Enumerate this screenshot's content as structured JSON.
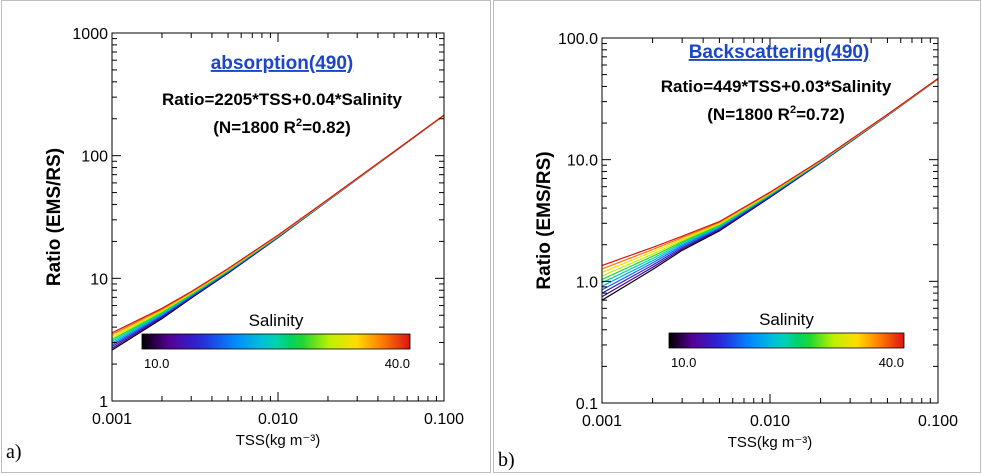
{
  "colors": {
    "title_link": "#1c46c8",
    "axis": "#000000"
  },
  "panels": [
    {
      "letter": "a)",
      "title": "absorption(490)",
      "equation": "Ratio=2205*TSS+0.04*Salinity",
      "stats_prefix": "(N=1800 R",
      "stats_sup": "2",
      "stats_suffix": "=0.82)"
    },
    {
      "letter": "b)",
      "title": "Backscattering(490)",
      "equation": "Ratio=449*TSS+0.03*Salinity",
      "stats_prefix": "(N=1800 R",
      "stats_sup": "2",
      "stats_suffix": "=0.72)"
    }
  ],
  "chart_data": [
    {
      "type": "line",
      "title": "absorption(490)",
      "xlabel": "TSS(kg m⁻³)",
      "ylabel": "Ratio (EMS/RS)",
      "xscale": "log",
      "yscale": "log",
      "xlim": [
        0.001,
        0.1
      ],
      "ylim": [
        1,
        1000
      ],
      "xticks": [
        0.001,
        0.01,
        0.1
      ],
      "xtick_labels": [
        "0.001",
        "0.010",
        "0.100"
      ],
      "yticks": [
        1,
        10,
        100,
        1000
      ],
      "ytick_labels": [
        "1",
        "10",
        "100",
        "1000"
      ],
      "colorbar": {
        "label": "Salinity",
        "min_label": "10.0",
        "max_label": "40.0",
        "min": 10,
        "max": 40
      },
      "x": [
        0.001,
        0.002,
        0.003,
        0.005,
        0.01,
        0.02,
        0.05,
        0.1
      ],
      "series_count": 11,
      "salinity_min_curve": [
        2.6,
        4.7,
        6.9,
        11.0,
        21.5,
        43.0,
        107.0,
        213.0
      ],
      "salinity_max_curve": [
        3.6,
        5.7,
        7.8,
        12.0,
        22.5,
        44.0,
        108.0,
        214.0
      ]
    },
    {
      "type": "line",
      "title": "Backscattering(490)",
      "xlabel": "TSS(kg m⁻³)",
      "ylabel": "Ratio (EMS/RS)",
      "xscale": "log",
      "yscale": "log",
      "xlim": [
        0.001,
        0.1
      ],
      "ylim": [
        0.1,
        100
      ],
      "xticks": [
        0.001,
        0.01,
        0.1
      ],
      "xtick_labels": [
        "0.001",
        "0.010",
        "0.100"
      ],
      "yticks": [
        0.1,
        1,
        10,
        100
      ],
      "ytick_labels": [
        "0.1",
        "1.0",
        "10.0",
        "100.0"
      ],
      "colorbar": {
        "label": "Salinity",
        "min_label": "10.0",
        "max_label": "40.0",
        "min": 10,
        "max": 40
      },
      "x": [
        0.001,
        0.002,
        0.003,
        0.005,
        0.01,
        0.02,
        0.05,
        0.1
      ],
      "series_count": 11,
      "salinity_min_curve": [
        0.7,
        1.25,
        1.8,
        2.6,
        4.9,
        9.4,
        23.0,
        46.0
      ],
      "salinity_max_curve": [
        1.35,
        1.9,
        2.35,
        3.1,
        5.4,
        9.9,
        23.5,
        46.5
      ]
    }
  ]
}
